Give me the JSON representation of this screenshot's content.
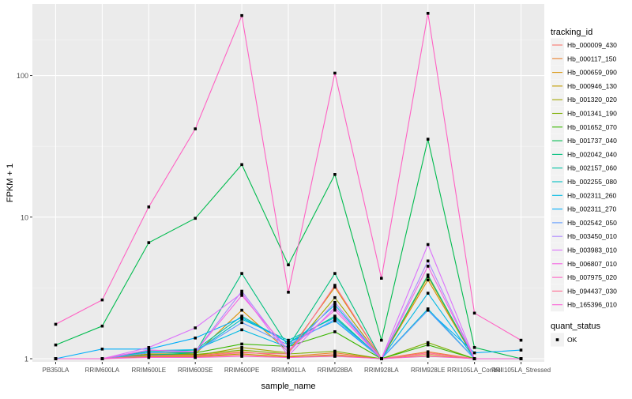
{
  "chart_data": {
    "type": "line",
    "xlabel": "sample_name",
    "ylabel": "FPKM + 1",
    "y_scale": "log10",
    "ylim": [
      0.95,
      320
    ],
    "y_ticks": [
      1,
      10,
      100
    ],
    "y_tick_labels": [
      "1",
      "10",
      "100"
    ],
    "grid": true,
    "legend_position": "right",
    "categories": [
      "PB350LA",
      "RRIM600LA",
      "RRIM600LE",
      "RRIM600SE",
      "RRIM600PE",
      "RRIM901LA",
      "RRIM928BA",
      "RRIM928LA",
      "RRIM928LE",
      "RRII105LA_Control",
      "RRII105LA_Stressed"
    ],
    "legend_title": "tracking_id",
    "series": [
      {
        "name": "Hb_000009_430",
        "color": "#F8766D",
        "values": [
          1.0,
          1.0,
          1.03,
          1.03,
          1.06,
          1.02,
          1.07,
          1.0,
          1.08,
          1.0,
          1.0
        ]
      },
      {
        "name": "Hb_000117_150",
        "color": "#EA8331",
        "values": [
          1.0,
          1.0,
          1.06,
          1.06,
          1.12,
          1.04,
          1.1,
          1.0,
          1.12,
          1.0,
          1.0
        ]
      },
      {
        "name": "Hb_000659_090",
        "color": "#D89000",
        "values": [
          1.0,
          1.0,
          1.08,
          1.08,
          2.2,
          1.12,
          3.2,
          1.0,
          3.6,
          1.0,
          1.0
        ]
      },
      {
        "name": "Hb_000946_130",
        "color": "#C09B00",
        "values": [
          1.0,
          1.0,
          1.04,
          1.04,
          1.08,
          1.03,
          1.05,
          1.0,
          1.05,
          1.0,
          1.0
        ]
      },
      {
        "name": "Hb_001320_020",
        "color": "#A3A500",
        "values": [
          1.0,
          1.0,
          1.05,
          1.05,
          1.2,
          1.1,
          2.7,
          1.0,
          3.8,
          1.0,
          1.0
        ]
      },
      {
        "name": "Hb_001341_190",
        "color": "#7CAE00",
        "values": [
          1.0,
          1.0,
          1.07,
          1.07,
          1.15,
          1.08,
          1.13,
          1.0,
          1.3,
          1.0,
          1.0
        ]
      },
      {
        "name": "Hb_001652_070",
        "color": "#39B600",
        "values": [
          1.0,
          1.0,
          1.1,
          1.1,
          1.27,
          1.22,
          1.55,
          1.0,
          1.25,
          1.0,
          1.0
        ]
      },
      {
        "name": "Hb_001737_040",
        "color": "#00BB4E",
        "values": [
          1.25,
          1.7,
          6.6,
          9.8,
          23.5,
          4.6,
          20.0,
          1.35,
          35.5,
          1.2,
          1.0
        ]
      },
      {
        "name": "Hb_002042_040",
        "color": "#00BF7D",
        "values": [
          1.0,
          1.0,
          1.06,
          1.1,
          4.0,
          1.22,
          4.0,
          1.0,
          3.9,
          1.0,
          1.0
        ]
      },
      {
        "name": "Hb_002157_060",
        "color": "#00C1A3",
        "values": [
          1.0,
          1.0,
          1.12,
          1.15,
          2.0,
          1.3,
          2.0,
          1.0,
          2.2,
          1.0,
          1.0
        ]
      },
      {
        "name": "Hb_002255_080",
        "color": "#00BFC4",
        "values": [
          1.0,
          1.0,
          1.1,
          1.12,
          1.9,
          1.35,
          1.95,
          1.0,
          2.25,
          1.0,
          1.0
        ]
      },
      {
        "name": "Hb_002311_260",
        "color": "#00B9E3",
        "values": [
          1.0,
          1.0,
          1.14,
          1.16,
          1.6,
          1.2,
          2.4,
          1.0,
          2.9,
          1.0,
          1.0
        ]
      },
      {
        "name": "Hb_002311_270",
        "color": "#00ADFA",
        "values": [
          1.0,
          1.17,
          1.17,
          1.4,
          1.95,
          1.3,
          1.85,
          1.0,
          2.2,
          1.1,
          1.15
        ]
      },
      {
        "name": "Hb_002542_050",
        "color": "#619CFF",
        "values": [
          1.0,
          1.0,
          1.1,
          1.12,
          1.8,
          1.25,
          1.9,
          1.0,
          2.2,
          1.0,
          1.0
        ]
      },
      {
        "name": "Hb_003450_010",
        "color": "#AE87FF",
        "values": [
          1.0,
          1.0,
          1.15,
          1.12,
          3.0,
          1.1,
          2.5,
          1.0,
          4.9,
          1.0,
          1.0
        ]
      },
      {
        "name": "Hb_003983_010",
        "color": "#DB72FB",
        "values": [
          1.0,
          1.0,
          1.2,
          1.65,
          2.9,
          1.05,
          2.3,
          1.0,
          6.4,
          1.0,
          1.0
        ]
      },
      {
        "name": "Hb_006807_010",
        "color": "#F564E3",
        "values": [
          1.0,
          1.0,
          1.15,
          1.12,
          2.8,
          1.15,
          2.2,
          1.0,
          4.5,
          1.0,
          1.0
        ]
      },
      {
        "name": "Hb_007975_020",
        "color": "#FF61C3",
        "values": [
          1.75,
          2.6,
          11.8,
          42.0,
          265.0,
          2.95,
          104.0,
          3.7,
          275.0,
          2.1,
          1.35
        ]
      },
      {
        "name": "Hb_094437_030",
        "color": "#FF6C91",
        "values": [
          1.0,
          1.0,
          1.05,
          1.05,
          1.1,
          1.08,
          3.3,
          1.0,
          1.1,
          1.0,
          1.0
        ]
      },
      {
        "name": "Hb_165396_010",
        "color": "#FB61D7",
        "values": [
          1.0,
          1.0,
          1.02,
          1.02,
          1.04,
          1.02,
          1.04,
          1.0,
          1.04,
          1.0,
          1.0
        ]
      }
    ],
    "shape_legend": {
      "title": "quant_status",
      "entries": [
        "OK"
      ]
    }
  }
}
